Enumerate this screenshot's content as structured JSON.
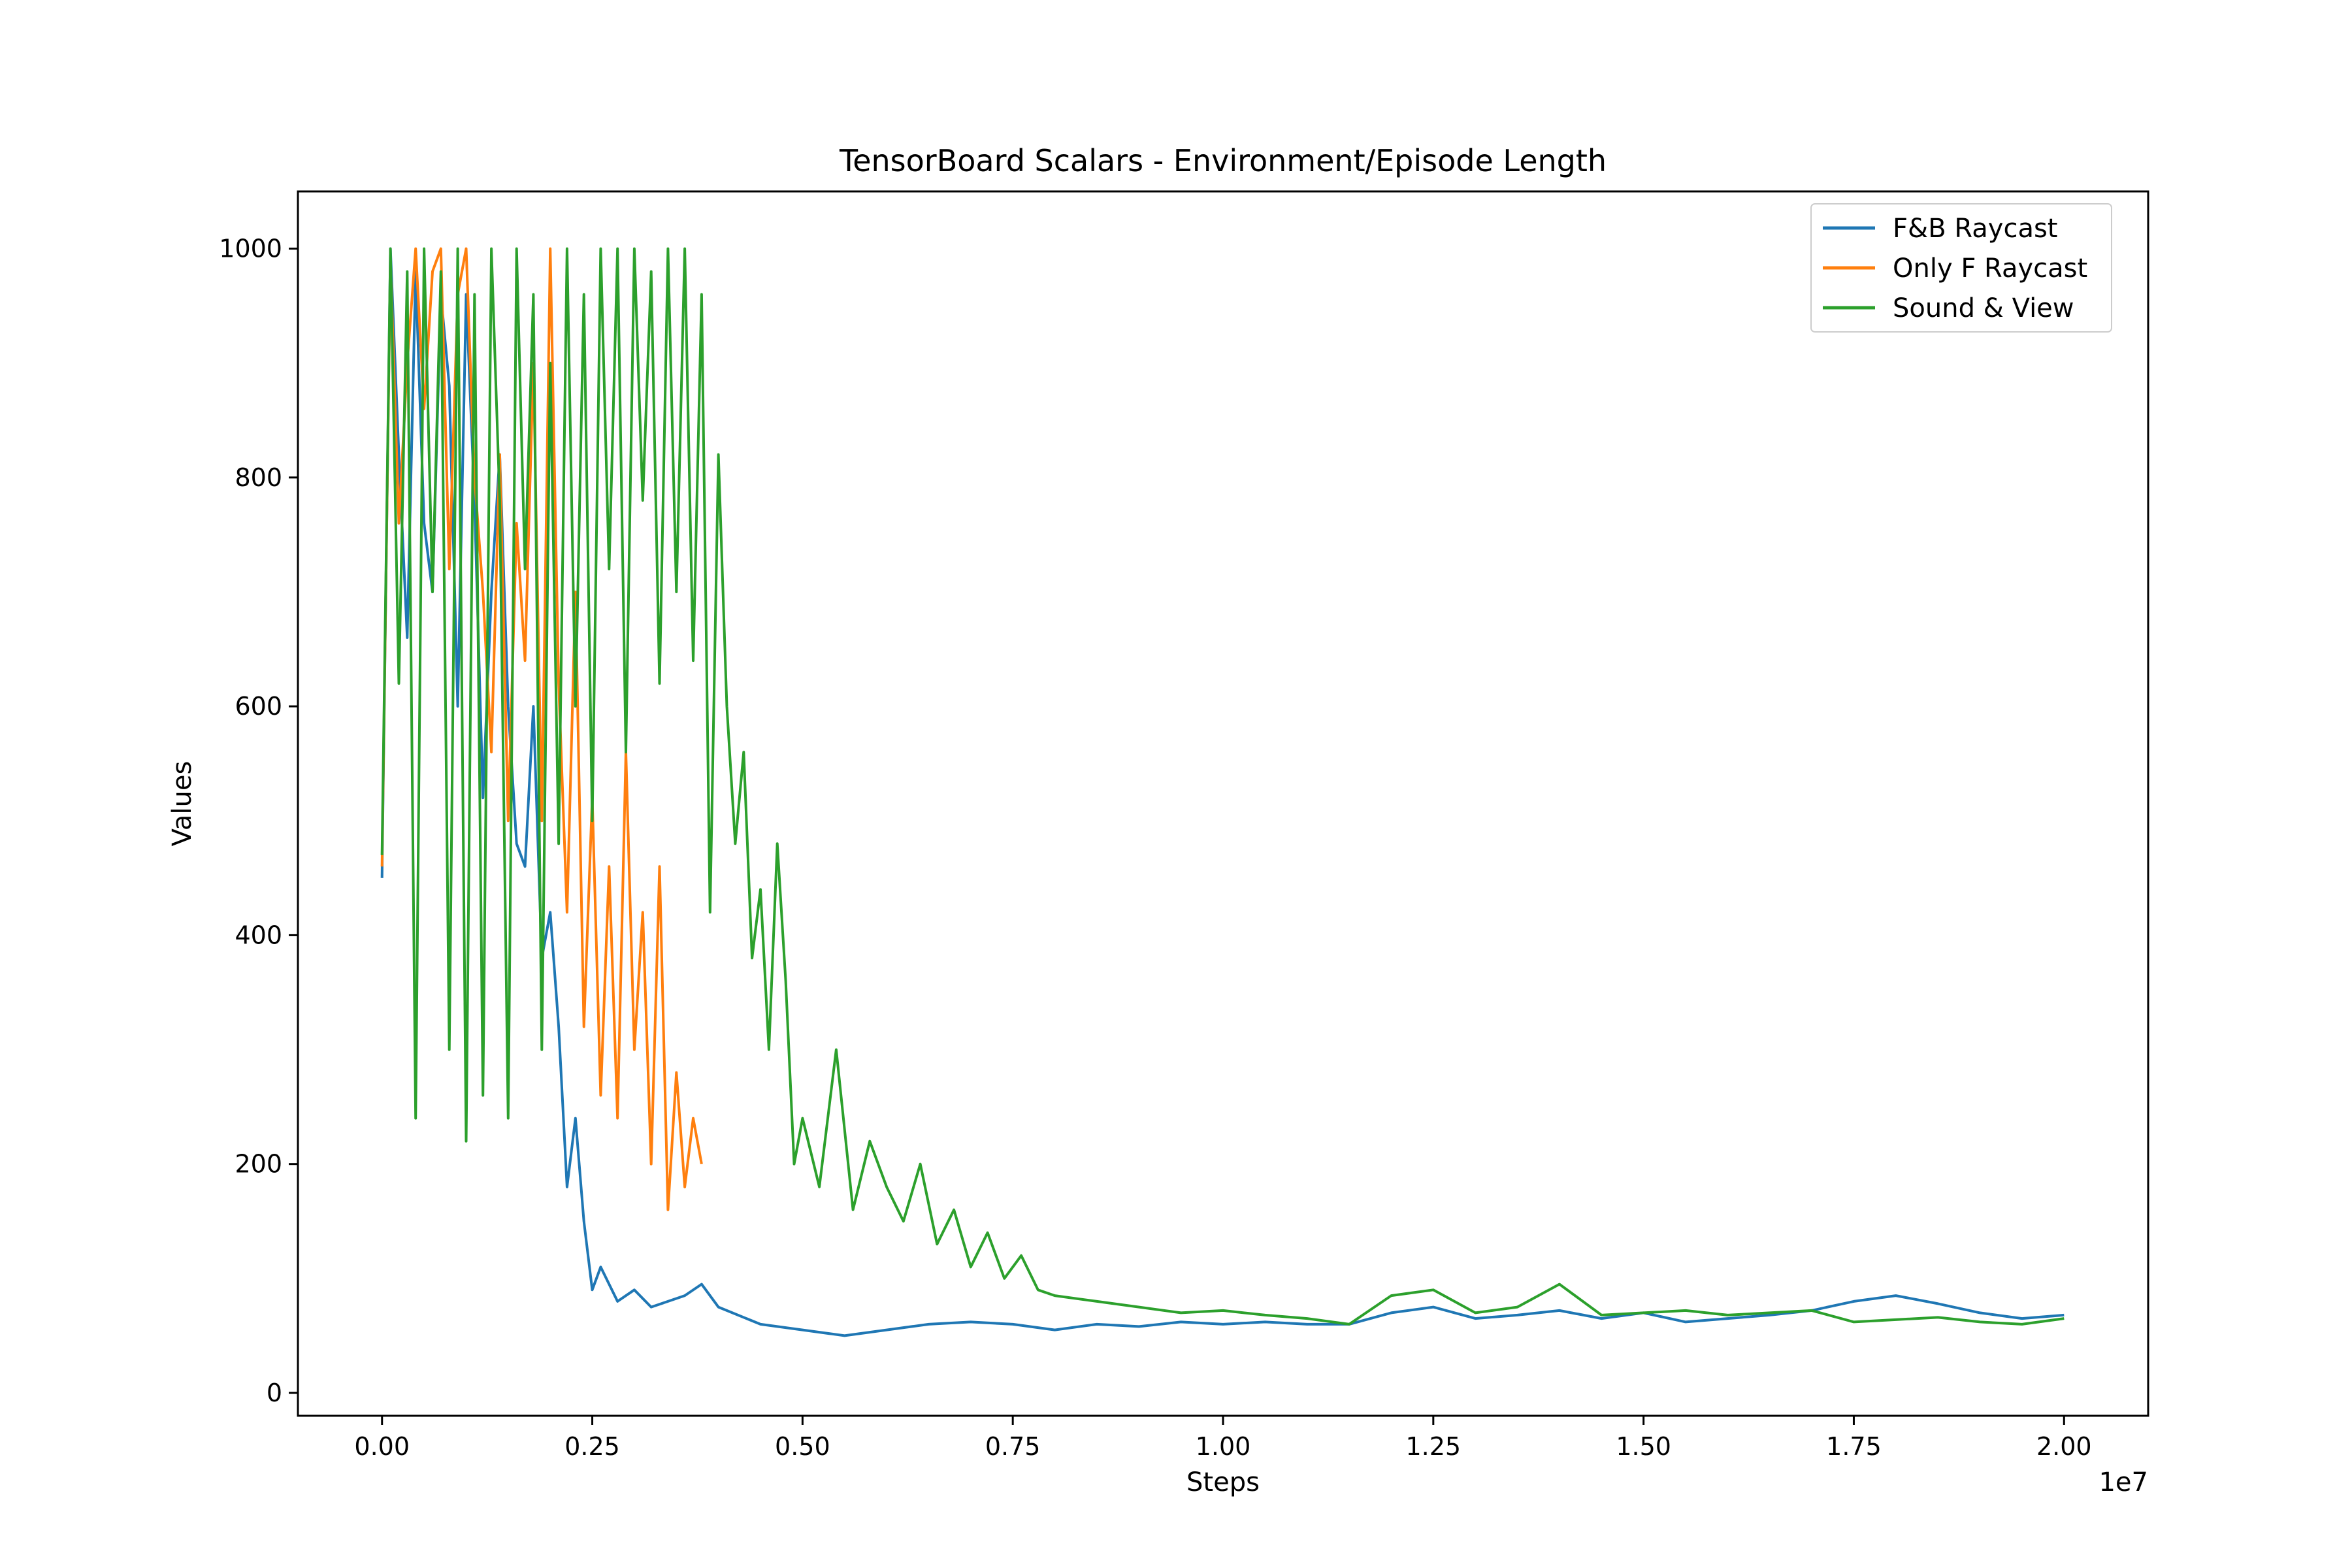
{
  "chart_data": {
    "type": "line",
    "title": "TensorBoard Scalars - Environment/Episode Length",
    "xlabel": "Steps",
    "ylabel": "Values",
    "x_offset_label": "1e7",
    "xlim": [
      -0.1,
      2.1
    ],
    "ylim": [
      -20,
      1050
    ],
    "x_ticks": [
      {
        "value": 0.0,
        "label": "0.00"
      },
      {
        "value": 0.25,
        "label": "0.25"
      },
      {
        "value": 0.5,
        "label": "0.50"
      },
      {
        "value": 0.75,
        "label": "0.75"
      },
      {
        "value": 1.0,
        "label": "1.00"
      },
      {
        "value": 1.25,
        "label": "1.25"
      },
      {
        "value": 1.5,
        "label": "1.50"
      },
      {
        "value": 1.75,
        "label": "1.75"
      },
      {
        "value": 2.0,
        "label": "2.00"
      }
    ],
    "y_ticks": [
      {
        "value": 0,
        "label": "0"
      },
      {
        "value": 200,
        "label": "200"
      },
      {
        "value": 400,
        "label": "400"
      },
      {
        "value": 600,
        "label": "600"
      },
      {
        "value": 800,
        "label": "800"
      },
      {
        "value": 1000,
        "label": "1000"
      }
    ],
    "legend": "top-right",
    "grid": false,
    "series": [
      {
        "name": "F&B Raycast",
        "color": "#1f77b4",
        "x": [
          0.0,
          0.01,
          0.02,
          0.03,
          0.04,
          0.05,
          0.06,
          0.07,
          0.08,
          0.09,
          0.1,
          0.11,
          0.12,
          0.13,
          0.14,
          0.15,
          0.16,
          0.17,
          0.18,
          0.19,
          0.2,
          0.21,
          0.22,
          0.23,
          0.24,
          0.25,
          0.26,
          0.28,
          0.3,
          0.32,
          0.34,
          0.36,
          0.38,
          0.4,
          0.45,
          0.5,
          0.55,
          0.6,
          0.65,
          0.7,
          0.75,
          0.8,
          0.85,
          0.9,
          0.95,
          1.0,
          1.05,
          1.1,
          1.15,
          1.2,
          1.25,
          1.3,
          1.35,
          1.4,
          1.45,
          1.5,
          1.55,
          1.6,
          1.65,
          1.7,
          1.75,
          1.8,
          1.85,
          1.9,
          1.95,
          2.0
        ],
        "y": [
          450,
          1000,
          820,
          660,
          980,
          760,
          700,
          960,
          880,
          600,
          960,
          780,
          520,
          700,
          820,
          600,
          480,
          460,
          600,
          380,
          420,
          320,
          180,
          240,
          150,
          90,
          110,
          80,
          90,
          75,
          80,
          85,
          95,
          75,
          60,
          55,
          50,
          55,
          60,
          62,
          60,
          55,
          60,
          58,
          62,
          60,
          62,
          60,
          60,
          70,
          75,
          65,
          68,
          72,
          65,
          70,
          62,
          65,
          68,
          72,
          80,
          85,
          78,
          70,
          65,
          68
        ]
      },
      {
        "name": "Only F Raycast",
        "color": "#ff7f0e",
        "x": [
          0.0,
          0.01,
          0.02,
          0.03,
          0.04,
          0.05,
          0.06,
          0.07,
          0.08,
          0.09,
          0.1,
          0.11,
          0.12,
          0.13,
          0.14,
          0.15,
          0.16,
          0.17,
          0.18,
          0.19,
          0.2,
          0.21,
          0.22,
          0.23,
          0.24,
          0.25,
          0.26,
          0.27,
          0.28,
          0.29,
          0.3,
          0.31,
          0.32,
          0.33,
          0.34,
          0.35,
          0.36,
          0.37,
          0.38
        ],
        "y": [
          460,
          990,
          760,
          900,
          1000,
          860,
          980,
          1000,
          720,
          960,
          1000,
          800,
          700,
          560,
          820,
          500,
          760,
          640,
          900,
          500,
          1000,
          620,
          420,
          700,
          320,
          520,
          260,
          460,
          240,
          560,
          300,
          420,
          200,
          460,
          160,
          280,
          180,
          240,
          200
        ]
      },
      {
        "name": "Sound & View",
        "color": "#2ca02c",
        "x": [
          0.0,
          0.01,
          0.02,
          0.03,
          0.04,
          0.05,
          0.06,
          0.07,
          0.08,
          0.09,
          0.1,
          0.11,
          0.12,
          0.13,
          0.14,
          0.15,
          0.16,
          0.17,
          0.18,
          0.19,
          0.2,
          0.21,
          0.22,
          0.23,
          0.24,
          0.25,
          0.26,
          0.27,
          0.28,
          0.29,
          0.3,
          0.31,
          0.32,
          0.33,
          0.34,
          0.35,
          0.36,
          0.37,
          0.38,
          0.39,
          0.4,
          0.41,
          0.42,
          0.43,
          0.44,
          0.45,
          0.46,
          0.47,
          0.48,
          0.49,
          0.5,
          0.52,
          0.54,
          0.56,
          0.58,
          0.6,
          0.62,
          0.64,
          0.66,
          0.68,
          0.7,
          0.72,
          0.74,
          0.76,
          0.78,
          0.8,
          0.85,
          0.9,
          0.95,
          1.0,
          1.05,
          1.1,
          1.15,
          1.2,
          1.25,
          1.3,
          1.35,
          1.4,
          1.45,
          1.5,
          1.55,
          1.6,
          1.65,
          1.7,
          1.75,
          1.8,
          1.85,
          1.9,
          1.95,
          2.0
        ],
        "y": [
          470,
          1000,
          620,
          980,
          240,
          1000,
          700,
          980,
          300,
          1000,
          220,
          960,
          260,
          1000,
          780,
          240,
          1000,
          720,
          960,
          300,
          900,
          480,
          1000,
          600,
          960,
          500,
          1000,
          720,
          1000,
          560,
          1000,
          780,
          980,
          620,
          1000,
          700,
          1000,
          640,
          960,
          420,
          820,
          600,
          480,
          560,
          380,
          440,
          300,
          480,
          360,
          200,
          240,
          180,
          300,
          160,
          220,
          180,
          150,
          200,
          130,
          160,
          110,
          140,
          100,
          120,
          90,
          85,
          80,
          75,
          70,
          72,
          68,
          65,
          60,
          85,
          90,
          70,
          75,
          95,
          68,
          70,
          72,
          68,
          70,
          72,
          62,
          64,
          66,
          62,
          60,
          65
        ]
      }
    ]
  }
}
